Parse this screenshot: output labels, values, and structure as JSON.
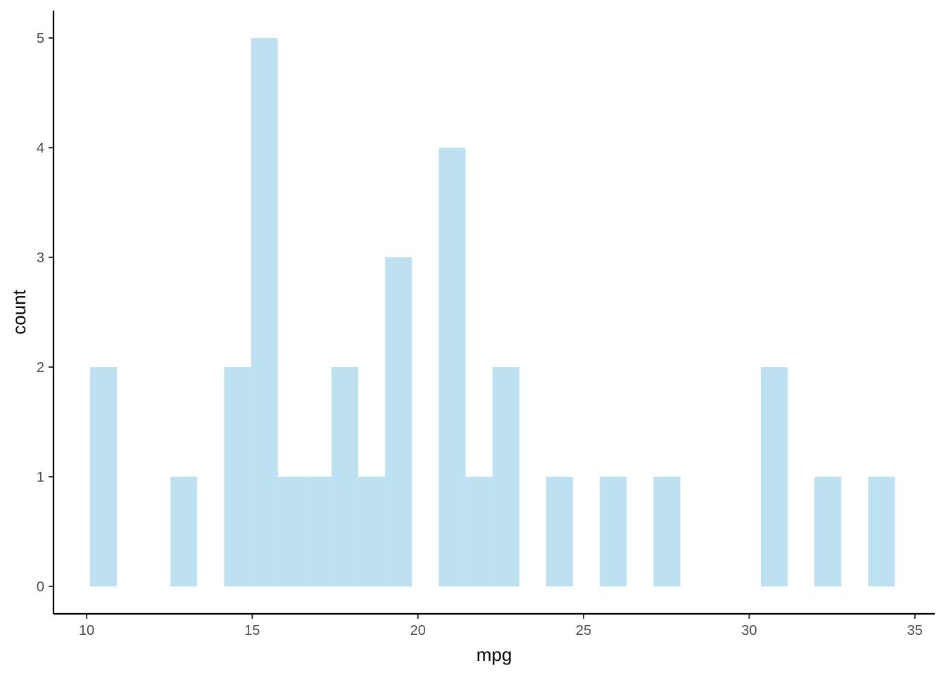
{
  "chart_data": {
    "type": "bar",
    "subtype": "histogram",
    "title": "",
    "xlabel": "mpg",
    "ylabel": "count",
    "xlim": [
      9,
      35.6
    ],
    "ylim": [
      -0.25,
      5.25
    ],
    "x_ticks": [
      10,
      15,
      20,
      25,
      30,
      35
    ],
    "y_ticks": [
      0,
      1,
      2,
      3,
      4,
      5
    ],
    "bin_width": 0.81,
    "bins": [
      {
        "start": 10.1,
        "end": 10.91,
        "count": 2
      },
      {
        "start": 12.53,
        "end": 13.34,
        "count": 1
      },
      {
        "start": 14.15,
        "end": 14.96,
        "count": 2
      },
      {
        "start": 14.96,
        "end": 15.77,
        "count": 5
      },
      {
        "start": 15.77,
        "end": 16.58,
        "count": 1
      },
      {
        "start": 16.58,
        "end": 17.39,
        "count": 1
      },
      {
        "start": 17.39,
        "end": 18.2,
        "count": 2
      },
      {
        "start": 18.2,
        "end": 19.01,
        "count": 1
      },
      {
        "start": 19.01,
        "end": 19.82,
        "count": 3
      },
      {
        "start": 20.63,
        "end": 21.44,
        "count": 4
      },
      {
        "start": 21.44,
        "end": 22.25,
        "count": 1
      },
      {
        "start": 22.25,
        "end": 23.06,
        "count": 2
      },
      {
        "start": 23.87,
        "end": 24.68,
        "count": 1
      },
      {
        "start": 25.49,
        "end": 26.3,
        "count": 1
      },
      {
        "start": 27.11,
        "end": 27.92,
        "count": 1
      },
      {
        "start": 30.35,
        "end": 31.16,
        "count": 2
      },
      {
        "start": 31.97,
        "end": 32.78,
        "count": 1
      },
      {
        "start": 33.59,
        "end": 34.4,
        "count": 1
      }
    ],
    "grid": false,
    "legend": "none",
    "colors": {
      "bar_fill": "#bde1f1",
      "axis_line": "#000000",
      "tick_label": "#4d4d4d",
      "axis_title": "#000000"
    }
  }
}
